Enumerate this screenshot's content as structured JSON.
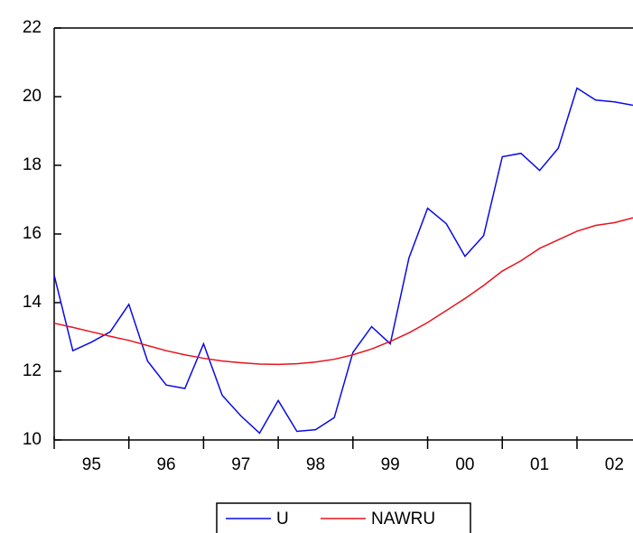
{
  "chart_data": {
    "type": "line",
    "x": [
      1995,
      1995.25,
      1995.5,
      1995.75,
      1996,
      1996.25,
      1996.5,
      1996.75,
      1997,
      1997.25,
      1997.5,
      1997.75,
      1998,
      1998.25,
      1998.5,
      1998.75,
      1999,
      1999.25,
      1999.5,
      1999.75,
      2000,
      2000.25,
      2000.5,
      2000.75,
      2001,
      2001.25,
      2001.5,
      2001.75,
      2002,
      2002.25,
      2002.5,
      2002.75
    ],
    "xlim": [
      1995,
      2002.75
    ],
    "xticks": [
      {
        "value": 1995.5,
        "label": "95"
      },
      {
        "value": 1996.5,
        "label": "96"
      },
      {
        "value": 1997.5,
        "label": "97"
      },
      {
        "value": 1998.5,
        "label": "98"
      },
      {
        "value": 1999.5,
        "label": "99"
      },
      {
        "value": 2000.5,
        "label": "00"
      },
      {
        "value": 2001.5,
        "label": "01"
      },
      {
        "value": 2002.5,
        "label": "02"
      }
    ],
    "ylim": [
      10,
      22
    ],
    "yticks": [
      10,
      12,
      14,
      16,
      18,
      20,
      22
    ],
    "legend": "bottom",
    "series": [
      {
        "name": "U",
        "color": "#0a0ae6",
        "values": [
          14.8,
          12.6,
          12.85,
          13.15,
          13.95,
          12.3,
          11.6,
          11.5,
          12.8,
          11.3,
          10.7,
          10.2,
          11.15,
          10.25,
          10.3,
          10.65,
          12.55,
          13.3,
          12.8,
          15.3,
          16.75,
          16.3,
          15.35,
          15.95,
          18.25,
          18.35,
          17.85,
          18.5,
          20.25,
          19.9,
          19.85,
          19.75
        ]
      },
      {
        "name": "NAWRU",
        "color": "#e6141e",
        "values": [
          13.4,
          13.28,
          13.15,
          13.02,
          12.9,
          12.75,
          12.6,
          12.48,
          12.38,
          12.3,
          12.25,
          12.21,
          12.2,
          12.22,
          12.27,
          12.35,
          12.48,
          12.65,
          12.87,
          13.12,
          13.42,
          13.77,
          14.12,
          14.5,
          14.92,
          15.22,
          15.58,
          15.83,
          16.08,
          16.25,
          16.33,
          16.47
        ]
      }
    ]
  }
}
